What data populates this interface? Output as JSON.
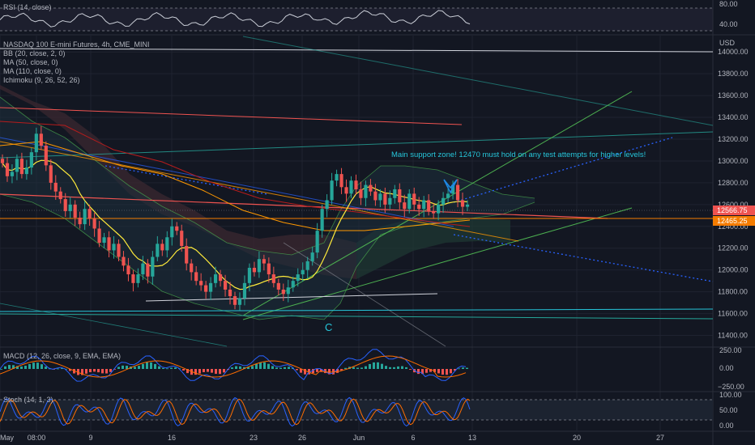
{
  "colors": {
    "background": "#131722",
    "grid": "#2a2e39",
    "axis_text": "#b2b5be",
    "candle_up": "#26a69a",
    "candle_down": "#ef5350",
    "price_tag_red": "#ef5350",
    "price_tag_orange": "#f57c00",
    "annotation": "#26c6da",
    "pattern_marker": "#1e88e5",
    "rsi_line": "#c9cdd6",
    "macd_line": "#2962ff",
    "signal_line": "#ff6d00",
    "stoch_k": "#2962ff",
    "stoch_d": "#ff6d00"
  },
  "legend": {
    "rsi": "RSI (14, close)",
    "symbol": "NASDAQ 100 E-mini Futures, 4h, CME_MINI",
    "bb": "BB (20, close, 2, 0)",
    "ma50": "MA (50, close, 0)",
    "ma110": "MA (110, close, 0)",
    "ichimoku": "Ichimoku (9, 26, 52, 26)",
    "macd": "MACD (12, 26, close, 9, EMA, EMA)",
    "stoch": "Stoch (14, 1, 3)"
  },
  "annotations": {
    "support_text": "Main support zone! 12470 must hold on any test attempts for higher levels!",
    "wave_c": "C"
  },
  "price_axis": {
    "currency": "USD",
    "ticks": [
      "14000.00",
      "13800.00",
      "13600.00",
      "13400.00",
      "13200.00",
      "13000.00",
      "12800.00",
      "12600.00",
      "12400.00",
      "12200.00",
      "12000.00",
      "11800.00",
      "11600.00",
      "11400.00"
    ],
    "last_price": "12566.75",
    "support_price": "12465.25"
  },
  "rsi_axis": {
    "ticks": [
      "80.00",
      "40.00"
    ]
  },
  "macd_axis": {
    "ticks": [
      "250.00",
      "0.00",
      "−250.00"
    ]
  },
  "stoch_axis": {
    "ticks": [
      "100.00",
      "50.00",
      "0.00"
    ]
  },
  "time_axis": {
    "labels": [
      "May",
      "08:00",
      "9",
      "16",
      "23",
      "26",
      "Jun",
      "6",
      "13",
      "20",
      "27"
    ]
  },
  "chart_data": {
    "type": "candlestick",
    "title": "NASDAQ 100 E-mini Futures, 4h, CME_MINI",
    "ylim": [
      11300,
      14150
    ],
    "x_range": [
      "May",
      "27"
    ],
    "closes": [
      12980,
      12860,
      12900,
      13020,
      12880,
      12940,
      13080,
      13250,
      13140,
      12960,
      12800,
      12720,
      12650,
      12540,
      12600,
      12480,
      12420,
      12560,
      12470,
      12380,
      12250,
      12300,
      12180,
      12240,
      12120,
      12040,
      11960,
      11880,
      11960,
      12060,
      11940,
      12120,
      12240,
      12180,
      12300,
      12400,
      12360,
      12220,
      12060,
      11980,
      11900,
      11860,
      11800,
      11880,
      11960,
      11900,
      11820,
      11760,
      11680,
      11740,
      11880,
      12020,
      11980,
      12100,
      12060,
      11960,
      11880,
      11820,
      11780,
      11840,
      11900,
      11960,
      12000,
      12080,
      12160,
      12360,
      12560,
      12640,
      12820,
      12880,
      12760,
      12700,
      12820,
      12740,
      12660,
      12780,
      12720,
      12640,
      12700,
      12600,
      12660,
      12740,
      12620,
      12560,
      12700,
      12600,
      12560,
      12640,
      12540,
      12520,
      12600,
      12660,
      12700,
      12780,
      12640,
      12580,
      12600
    ],
    "support_level": 12465.25,
    "last_price": 12566.75
  }
}
